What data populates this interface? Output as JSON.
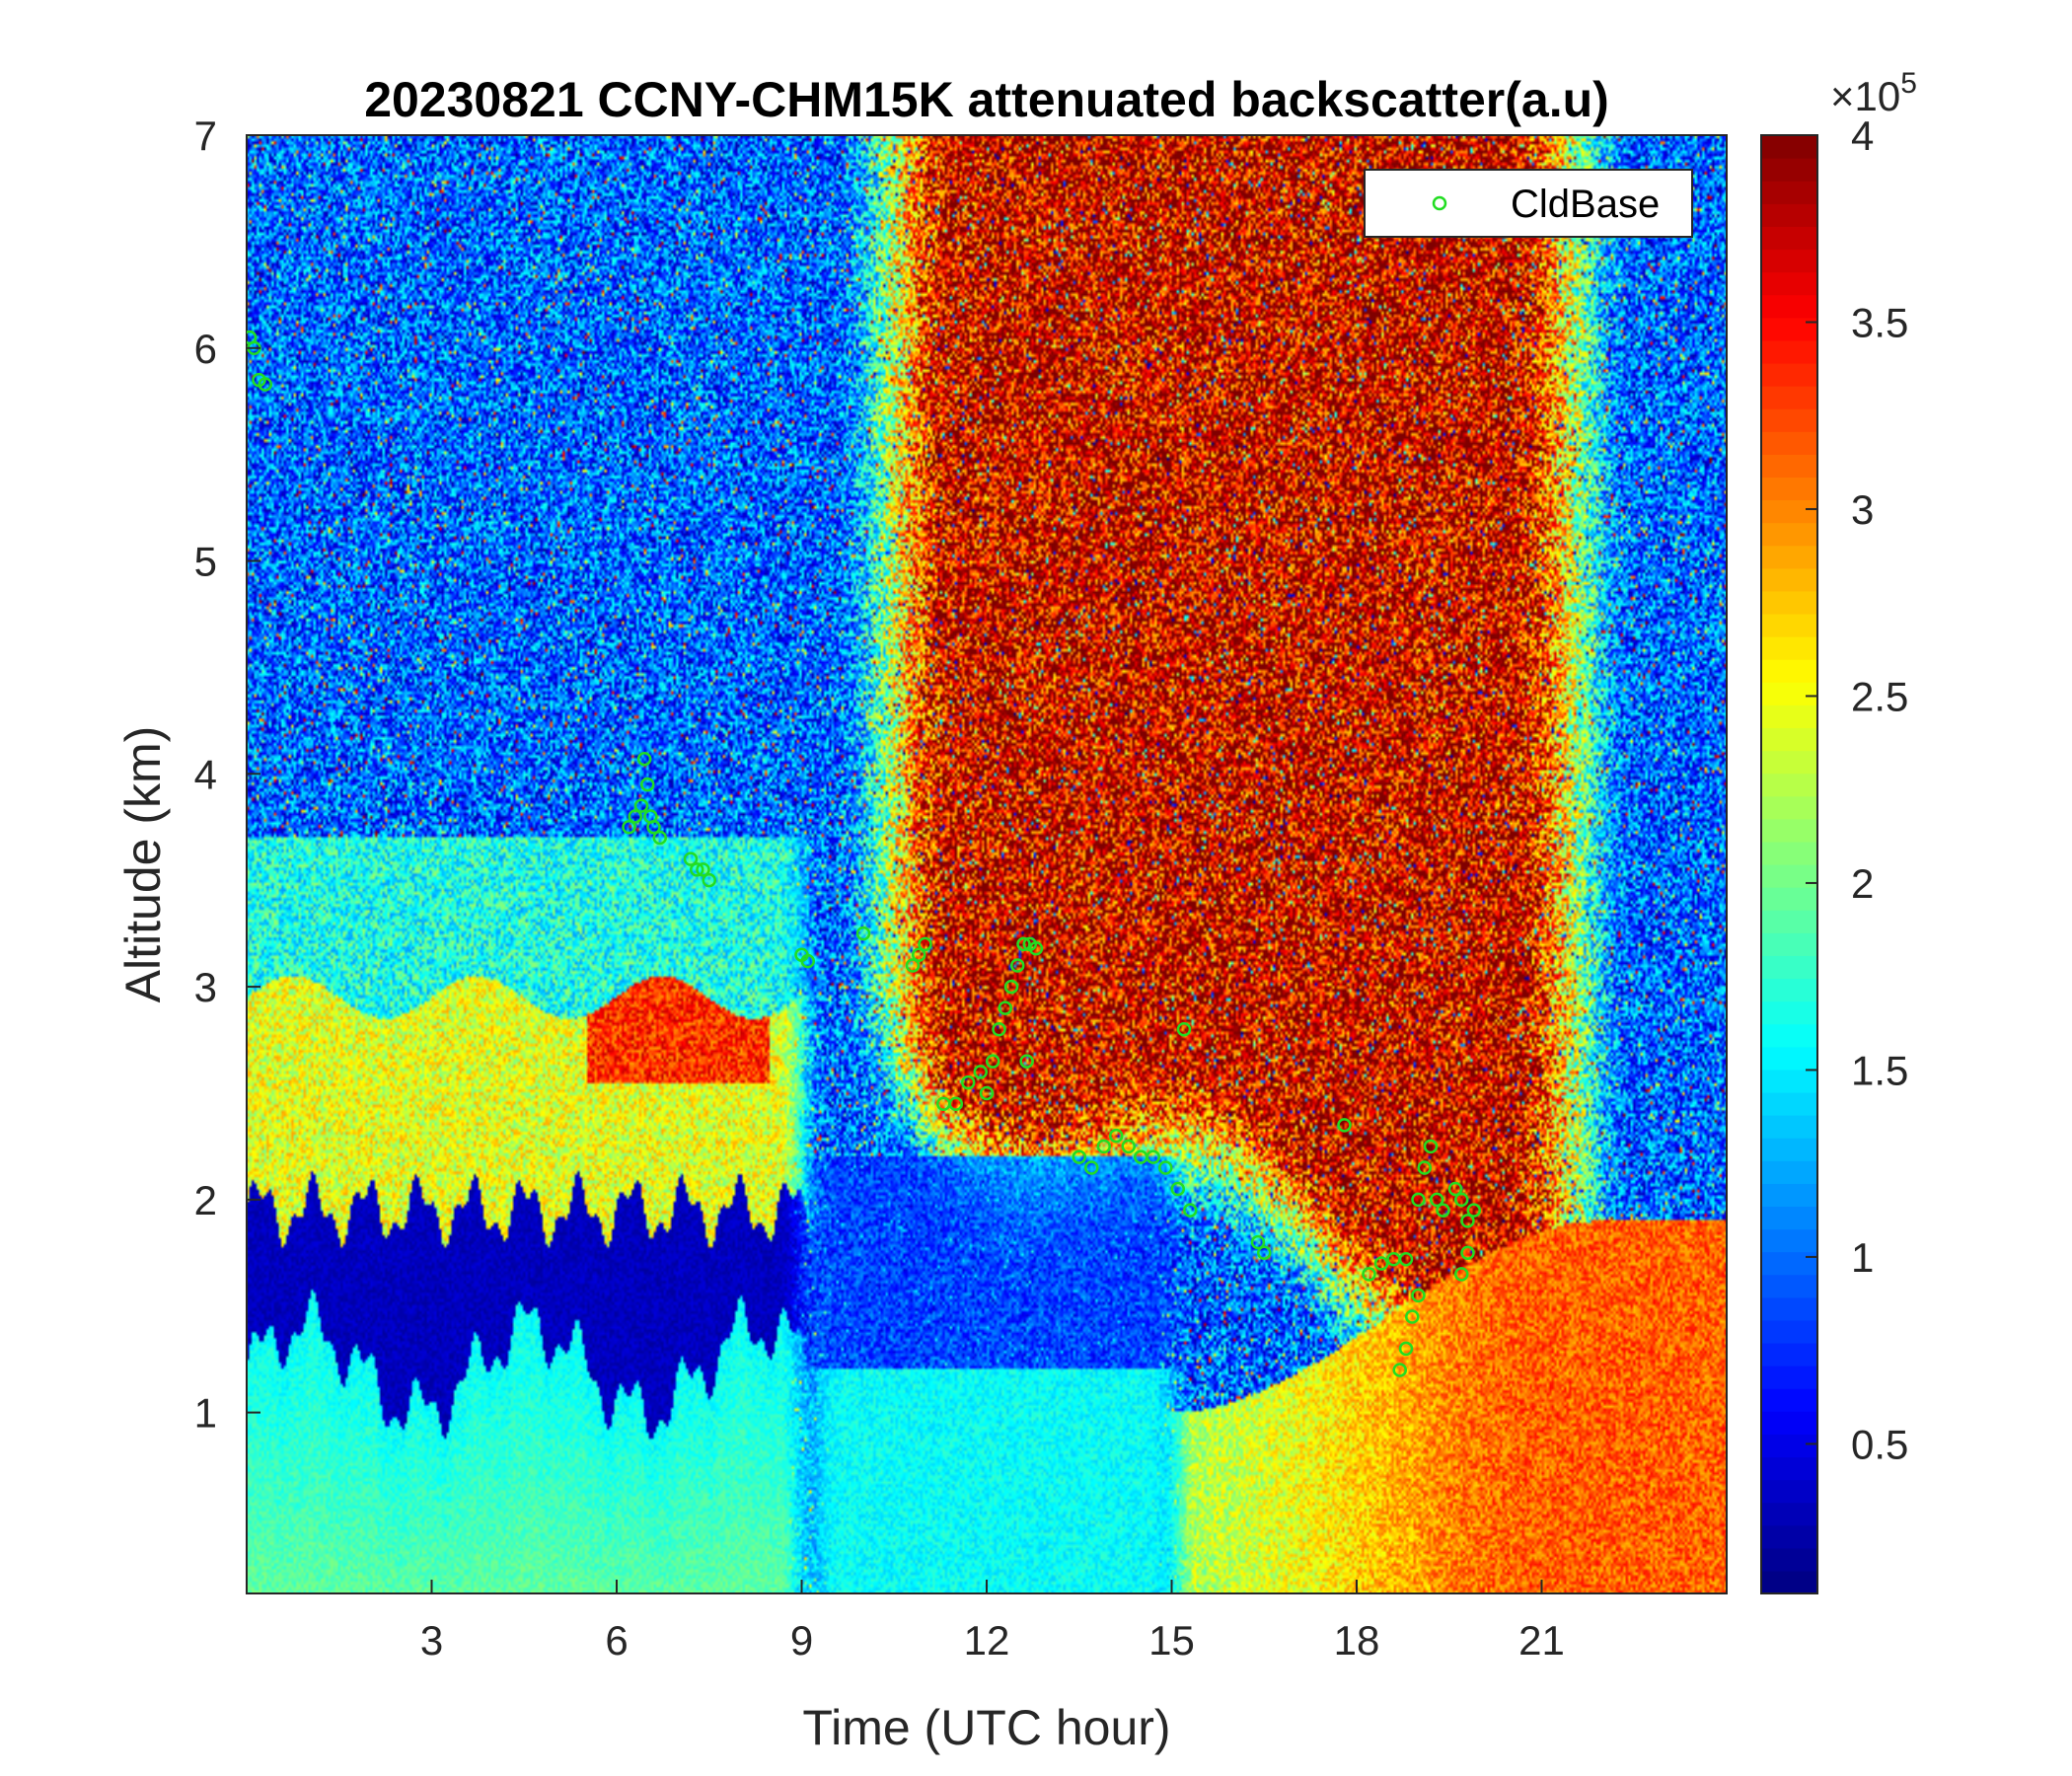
{
  "chart_data": {
    "type": "heatmap",
    "title": "20230821 CCNY-CHM15K attenuated backscatter(a.u)",
    "xlabel": "Time (UTC hour)",
    "ylabel": "Altitude (km)",
    "xlim": [
      0,
      24
    ],
    "ylim": [
      0.15,
      7
    ],
    "x_ticks": [
      3,
      6,
      9,
      12,
      15,
      18,
      21
    ],
    "x_tick_labels": [
      "3",
      "6",
      "9",
      "12",
      "15",
      "18",
      "21"
    ],
    "y_ticks": [
      1,
      2,
      3,
      4,
      5,
      6,
      7
    ],
    "y_tick_labels": [
      "1",
      "2",
      "3",
      "4",
      "5",
      "6",
      "7"
    ],
    "colorbar": {
      "colormap": "jet",
      "clim": [
        0.1,
        4
      ],
      "ticks": [
        0.5,
        1,
        1.5,
        2,
        2.5,
        3,
        3.5,
        4
      ],
      "tick_labels": [
        "0.5",
        "1",
        "1.5",
        "2",
        "2.5",
        "3",
        "3.5",
        "4"
      ],
      "exponent_label": "×10",
      "exponent_power": "5"
    },
    "legend": {
      "position": "top-right",
      "entries": [
        "CldBase"
      ]
    },
    "colors": {
      "cloud_base_marker": "#22dd22"
    },
    "series": [
      {
        "name": "CldBase",
        "marker": "circle",
        "x": [
          0.05,
          0.12,
          0.2,
          0.3,
          6.2,
          6.3,
          6.4,
          6.45,
          6.5,
          6.55,
          6.6,
          6.7,
          7.2,
          7.3,
          7.4,
          7.5,
          9.0,
          9.1,
          10.0,
          10.8,
          10.9,
          11.0,
          11.3,
          11.5,
          11.7,
          11.9,
          12.0,
          12.1,
          12.2,
          12.3,
          12.4,
          12.5,
          12.6,
          12.7,
          12.8,
          12.65,
          13.5,
          13.7,
          13.9,
          14.1,
          14.3,
          14.5,
          14.7,
          14.9,
          15.1,
          15.3,
          15.2,
          16.4,
          16.5,
          17.8,
          18.2,
          18.4,
          18.6,
          18.8,
          18.7,
          18.8,
          18.9,
          19.0,
          19.0,
          19.1,
          19.2,
          19.3,
          19.4,
          19.6,
          19.7,
          19.8,
          19.9,
          19.7,
          19.8
        ],
        "y": [
          6.05,
          6.0,
          5.85,
          5.83,
          3.75,
          3.8,
          3.85,
          4.07,
          3.95,
          3.8,
          3.75,
          3.7,
          3.6,
          3.55,
          3.55,
          3.5,
          3.15,
          3.12,
          3.25,
          3.1,
          3.15,
          3.2,
          2.45,
          2.45,
          2.55,
          2.6,
          2.5,
          2.65,
          2.8,
          2.9,
          3.0,
          3.1,
          3.2,
          3.2,
          3.18,
          2.65,
          2.2,
          2.15,
          2.25,
          2.3,
          2.25,
          2.2,
          2.2,
          2.15,
          2.05,
          1.95,
          2.8,
          1.8,
          1.75,
          2.35,
          1.65,
          1.7,
          1.72,
          1.72,
          1.2,
          1.3,
          1.45,
          1.55,
          2.0,
          2.15,
          2.25,
          2.0,
          1.95,
          2.05,
          2.0,
          1.9,
          1.95,
          1.65,
          1.75
        ]
      }
    ]
  }
}
